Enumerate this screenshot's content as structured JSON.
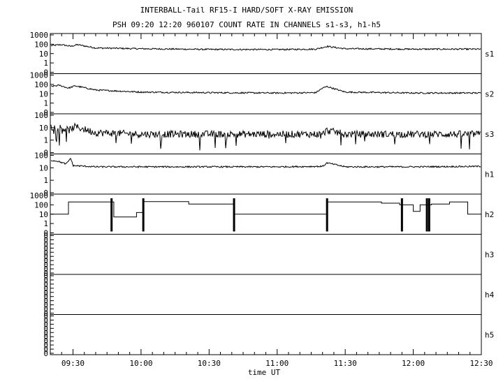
{
  "chart_data": {
    "type": "line",
    "title": "INTERBALL-Tail RF15-I HARD/SOFT X-RAY EMISSION",
    "subtitle": "PSH 09:20 12:20 960107  COUNT RATE IN CHANNELS s1-s3, h1-h5",
    "xlabel": "time UT",
    "x_ticks": [
      "09:30",
      "10:00",
      "10:30",
      "11:00",
      "11:30",
      "12:00",
      "12:30"
    ],
    "xlim": [
      "09:20",
      "12:30"
    ],
    "yscale": "log",
    "grid": false,
    "panels": [
      {
        "name": "s1",
        "y_tick_labels": [
          "1000",
          "100",
          "10",
          "1",
          "0"
        ],
        "series": [
          {
            "x": [
              "09:20",
              "09:25",
              "09:29",
              "09:32",
              "09:40",
              "10:00",
              "10:30",
              "11:00",
              "11:17",
              "11:20",
              "11:22",
              "11:27",
              "11:30",
              "12:00",
              "12:30"
            ],
            "y": [
              70,
              90,
              60,
              90,
              40,
              33,
              28,
              27,
              30,
              45,
              60,
              40,
              33,
              30,
              30
            ]
          }
        ]
      },
      {
        "name": "s2",
        "y_tick_labels": [
          "1000",
          "100",
          "10",
          "1",
          "0"
        ],
        "series": [
          {
            "x": [
              "09:20",
              "09:24",
              "09:28",
              "09:31",
              "09:40",
              "10:00",
              "10:30",
              "11:00",
              "11:17",
              "11:20",
              "11:22",
              "11:27",
              "11:30",
              "12:00",
              "12:30"
            ],
            "y": [
              60,
              80,
              40,
              70,
              25,
              15,
              13,
              12,
              13,
              40,
              60,
              25,
              15,
              12,
              12
            ]
          }
        ]
      },
      {
        "name": "s3",
        "y_tick_labels": [
          "100",
          "10",
          "1",
          "0"
        ],
        "series": [
          {
            "x": [
              "09:20",
              "09:25",
              "09:28",
              "09:31",
              "09:40",
              "10:00",
              "10:30",
              "11:00",
              "11:20",
              "11:22",
              "11:30",
              "12:00",
              "12:30"
            ],
            "y": [
              12,
              10,
              6,
              12,
              4,
              3,
              3,
              3,
              3,
              6,
              3,
              3,
              3
            ]
          }
        ]
      },
      {
        "name": "h1",
        "y_tick_labels": [
          "100",
          "10",
          "1",
          "0"
        ],
        "series": [
          {
            "x": [
              "09:20",
              "09:23",
              "09:27",
              "09:29",
              "09:30",
              "09:40",
              "10:00",
              "10:30",
              "11:00",
              "11:20",
              "11:22",
              "11:30",
              "12:00",
              "12:30"
            ],
            "y": [
              40,
              35,
              20,
              60,
              15,
              12,
              12,
              12,
              12,
              13,
              25,
              12,
              12,
              13
            ]
          }
        ]
      },
      {
        "name": "h2",
        "y_tick_labels": [
          "1000",
          "100",
          "10",
          "1",
          "0"
        ],
        "series": [
          {
            "x": [
              "09:20",
              "09:28",
              "09:28",
              "09:48",
              "09:48",
              "09:58",
              "09:58",
              "10:01",
              "10:01",
              "10:21",
              "10:21",
              "10:41",
              "10:41",
              "11:22",
              "11:22",
              "11:46",
              "11:46",
              "11:54",
              "11:54",
              "12:00",
              "12:00",
              "12:03",
              "12:03",
              "12:08",
              "12:08",
              "12:16",
              "12:16",
              "12:24",
              "12:24",
              "12:30"
            ],
            "y": [
              10,
              10,
              200,
              200,
              5,
              5,
              15,
              15,
              220,
              220,
              120,
              120,
              10,
              10,
              200,
              200,
              150,
              150,
              100,
              100,
              20,
              20,
              100,
              100,
              120,
              120,
              200,
              200,
              10,
              10
            ]
          }
        ],
        "spikes": [
          "09:47",
          "10:01",
          "10:41",
          "11:22",
          "11:55",
          "12:06",
          "12:07"
        ]
      },
      {
        "name": "h3",
        "y_tick_labels": [
          "0",
          "0",
          "0",
          "0",
          "0",
          "0",
          "0",
          "0",
          "0",
          "0"
        ],
        "series": []
      },
      {
        "name": "h4",
        "y_tick_labels": [
          "0",
          "0",
          "0",
          "0",
          "0",
          "0",
          "0",
          "0",
          "0",
          "0"
        ],
        "series": []
      },
      {
        "name": "h5",
        "y_tick_labels": [
          "0",
          "0",
          "0",
          "0",
          "0",
          "0",
          "0",
          "0",
          "0",
          "0"
        ],
        "series": []
      }
    ]
  }
}
